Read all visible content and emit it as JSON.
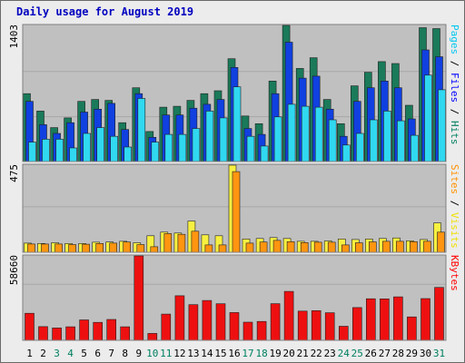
{
  "chart_data": {
    "type": "bar",
    "title": "Daily usage for August 2019",
    "x": [
      "1",
      "2",
      "3",
      "4",
      "5",
      "6",
      "7",
      "8",
      "9",
      "10",
      "11",
      "12",
      "13",
      "14",
      "15",
      "16",
      "17",
      "18",
      "19",
      "20",
      "21",
      "22",
      "23",
      "24",
      "25",
      "26",
      "27",
      "28",
      "29",
      "30",
      "31"
    ],
    "weekend_days": [
      "3",
      "4",
      "10",
      "11",
      "17",
      "18",
      "24",
      "25",
      "31"
    ],
    "panels": [
      {
        "id": "top",
        "axis_max_label": "1403",
        "ylim": [
          0,
          1403
        ],
        "right_label_parts": [
          {
            "text": "Pages",
            "color": "#00c8f0"
          },
          {
            "text": " / ",
            "color": "#000000"
          },
          {
            "text": "Files",
            "color": "#0000ff"
          },
          {
            "text": " / ",
            "color": "#000000"
          },
          {
            "text": "Hits",
            "color": "#008060"
          }
        ],
        "series": [
          {
            "name": "Hits",
            "color": "#1a7a5a",
            "values": [
              700,
              520,
              350,
              450,
              620,
              640,
              630,
              400,
              760,
              310,
              560,
              570,
              630,
              700,
              730,
              1060,
              470,
              390,
              830,
              1403,
              960,
              1070,
              640,
              390,
              780,
              920,
              1030,
              1010,
              580,
              1380,
              1370
            ]
          },
          {
            "name": "Files",
            "color": "#1040e0",
            "values": [
              620,
              380,
              290,
              400,
              510,
              540,
              600,
              330,
              700,
              250,
              480,
              480,
              550,
              590,
              640,
              970,
              340,
              280,
              700,
              1230,
              860,
              880,
              540,
              260,
              620,
              760,
              830,
              760,
              440,
              1150,
              1080
            ]
          },
          {
            "name": "Pages",
            "color": "#30d8f0",
            "values": [
              200,
              230,
              230,
              140,
              290,
              350,
              260,
              150,
              650,
              200,
              280,
              280,
              340,
              520,
              450,
              770,
              260,
              160,
              460,
              590,
              570,
              560,
              430,
              170,
              290,
              430,
              520,
              420,
              270,
              890,
              740
            ]
          }
        ]
      },
      {
        "id": "middle",
        "axis_max_label": "475",
        "ylim": [
          0,
          475
        ],
        "right_label_parts": [
          {
            "text": "Sites",
            "color": "#ff9000"
          },
          {
            "text": " / ",
            "color": "#000000"
          },
          {
            "text": "Visits",
            "color": "#f0e000"
          }
        ],
        "series": [
          {
            "name": "Visits",
            "color": "#f8f040",
            "values": [
              50,
              48,
              52,
              48,
              48,
              55,
              56,
              60,
              52,
              90,
              110,
              105,
              170,
              95,
              90,
              475,
              72,
              75,
              80,
              75,
              60,
              60,
              62,
              72,
              70,
              72,
              75,
              78,
              63,
              70,
              160
            ]
          },
          {
            "name": "Sites",
            "color": "#ff9510",
            "values": [
              45,
              45,
              45,
              42,
              44,
              48,
              50,
              56,
              42,
              30,
              102,
              98,
              115,
              40,
              40,
              440,
              50,
              56,
              65,
              58,
              53,
              55,
              55,
              40,
              52,
              57,
              60,
              60,
              58,
              60,
              110
            ]
          }
        ]
      },
      {
        "id": "bottom",
        "axis_max_label": "58660",
        "ylim": [
          0,
          58660
        ],
        "right_label_parts": [
          {
            "text": "KBytes",
            "color": "#ff0000"
          }
        ],
        "series": [
          {
            "name": "KBytes",
            "color": "#ee1010",
            "values": [
              18800,
              9500,
              8600,
              9400,
              14200,
              12500,
              14500,
              9400,
              58660,
              4800,
              18200,
              31000,
              24800,
              27700,
              25400,
              19300,
              12600,
              13100,
              25500,
              34000,
              20300,
              20600,
              19200,
              9800,
              22800,
              28900,
              28800,
              30200,
              16300,
              29000,
              36800
            ]
          }
        ]
      }
    ]
  }
}
